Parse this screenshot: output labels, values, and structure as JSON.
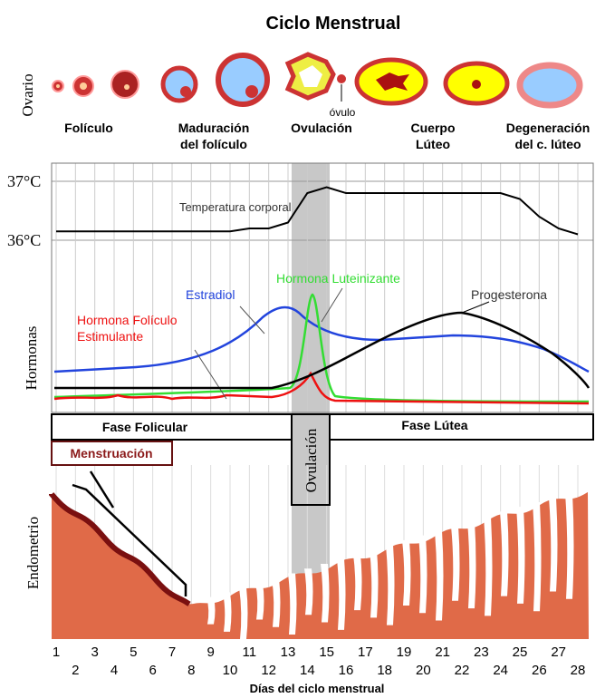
{
  "title": "Ciclo Menstrual",
  "ovary": {
    "label": "Ovario",
    "ovum": "óvulo",
    "stages": [
      [
        "Folículo"
      ],
      [
        "Maduración",
        "del folículo"
      ],
      [
        "Ovulación"
      ],
      [
        "Cuerpo",
        "Lúteo"
      ],
      [
        "Degeneración",
        "del c. lúteo"
      ]
    ]
  },
  "temperature": {
    "label": "Temperatura corporal",
    "yticks": [
      {
        "value": 36,
        "label": "36°C"
      },
      {
        "value": 37,
        "label": "37°C"
      }
    ],
    "values": [
      36.15,
      36.15,
      36.15,
      36.15,
      36.15,
      36.15,
      36.15,
      36.15,
      36.15,
      36.15,
      36.2,
      36.2,
      36.3,
      36.8,
      36.9,
      36.8,
      36.8,
      36.8,
      36.8,
      36.8,
      36.8,
      36.8,
      36.8,
      36.8,
      36.7,
      36.4,
      36.2,
      36.1
    ]
  },
  "hormones": {
    "label": "Hormonas",
    "series": [
      {
        "name": [
          "Estradiol"
        ],
        "color": "#2244dd"
      },
      {
        "name": [
          "Hormona Luteinizante"
        ],
        "color": "#33dd33"
      },
      {
        "name": [
          "Hormona Folículo",
          "Estimulante"
        ],
        "color": "#ee1111"
      },
      {
        "name": [
          "Progesterona"
        ],
        "color": "#000000"
      }
    ]
  },
  "phases": {
    "follicular": "Fase Folicular",
    "ovulation": "Ovulación",
    "luteal": "Fase Lútea",
    "menstruation": "Menstruación"
  },
  "endometrium": "Endometrio",
  "x_axis": {
    "label": "Días del ciclo menstrual",
    "ticks": [
      1,
      2,
      3,
      4,
      5,
      6,
      7,
      8,
      9,
      10,
      11,
      12,
      13,
      14,
      15,
      16,
      17,
      18,
      19,
      20,
      21,
      22,
      23,
      24,
      25,
      26,
      27,
      28
    ]
  }
}
